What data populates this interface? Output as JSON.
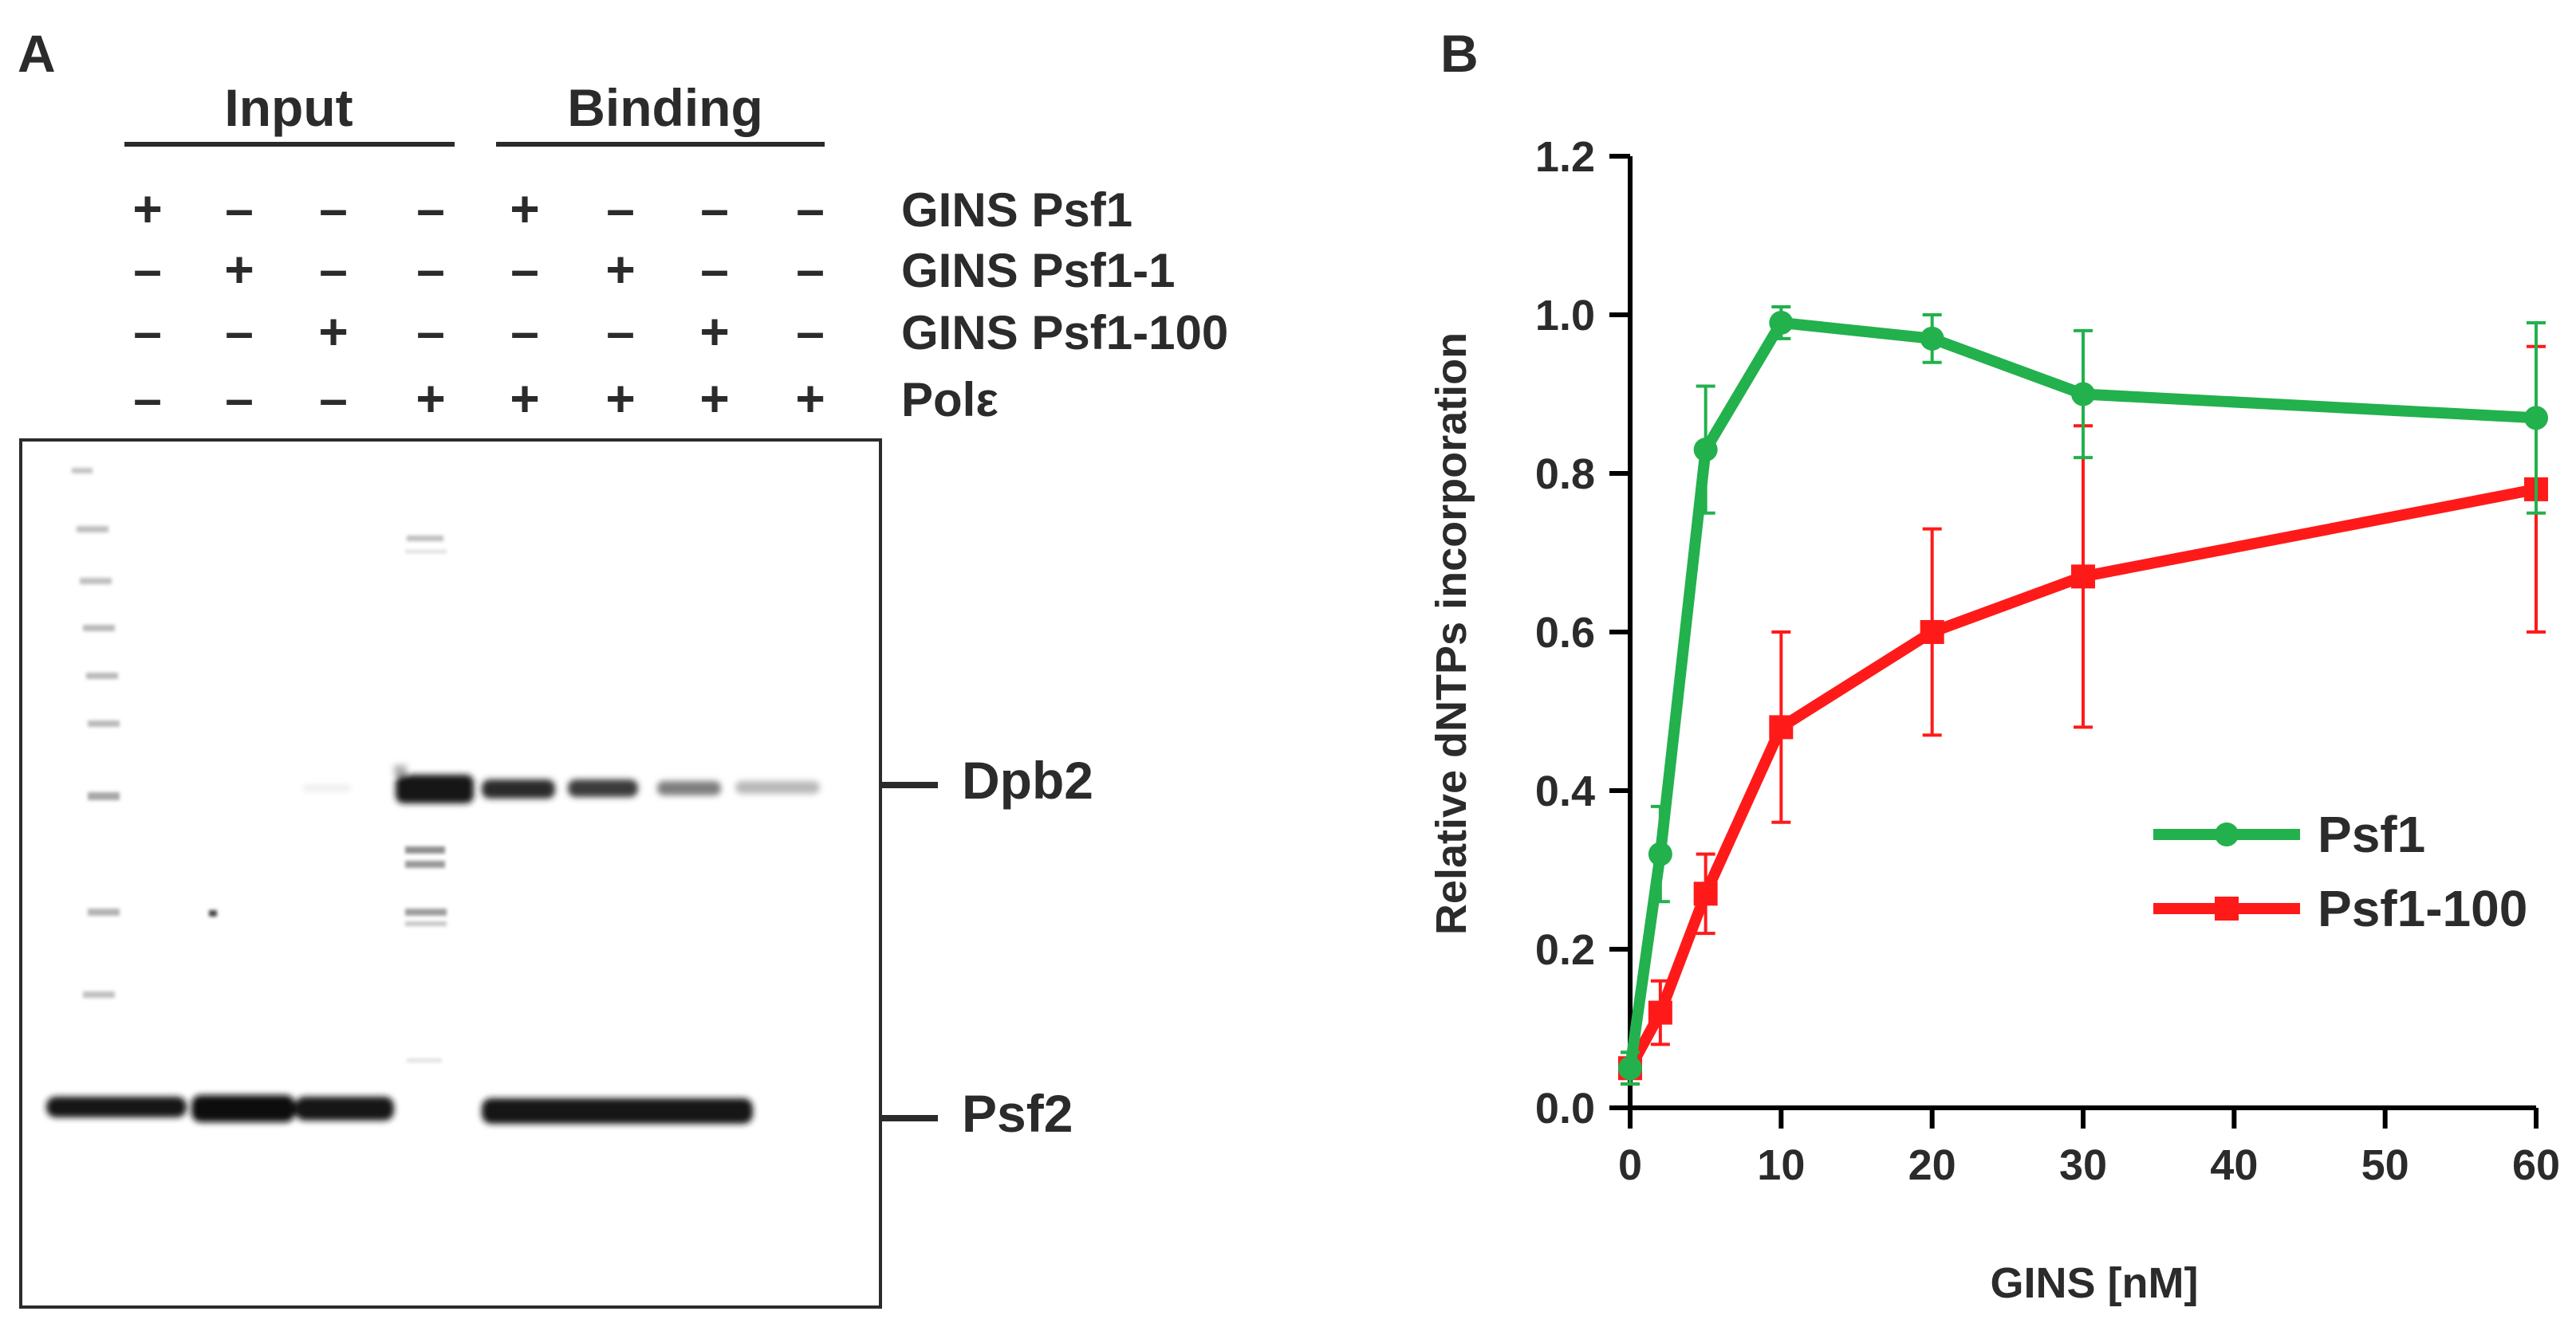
{
  "panel_a": {
    "label": "A",
    "group_headers": [
      "Input",
      "Binding"
    ],
    "rows": [
      {
        "label": "GINS Psf1",
        "signs": [
          "+",
          "–",
          "–",
          "–",
          "+",
          "–",
          "–",
          "–"
        ]
      },
      {
        "label": "GINS Psf1-1",
        "signs": [
          "–",
          "+",
          "–",
          "–",
          "–",
          "+",
          "–",
          "–"
        ]
      },
      {
        "label": "GINS Psf1-100",
        "signs": [
          "–",
          "–",
          "+",
          "–",
          "–",
          "–",
          "+",
          "–"
        ]
      },
      {
        "label": "Polε",
        "signs": [
          "–",
          "–",
          "–",
          "+",
          "+",
          "+",
          "+",
          "+"
        ]
      }
    ],
    "band_labels": {
      "dpb2": "Dpb2",
      "psf2": "Psf2"
    }
  },
  "panel_b": {
    "label": "B"
  },
  "chart_data": {
    "type": "line",
    "title": "",
    "xlabel": "GINS [nM]",
    "ylabel": "Relative dNTPs incorporation",
    "xlim": [
      0,
      60
    ],
    "ylim": [
      0,
      1.2
    ],
    "xticks": [
      0,
      10,
      20,
      30,
      40,
      50,
      60
    ],
    "yticks": [
      0.0,
      0.2,
      0.4,
      0.6,
      0.8,
      1.0,
      1.2
    ],
    "xtick_labels": [
      "0",
      "10",
      "20",
      "30",
      "40",
      "50",
      "60"
    ],
    "ytick_labels": [
      "0.0",
      "0.2",
      "0.4",
      "0.6",
      "0.8",
      "1.0",
      "1.2"
    ],
    "legend_position": "right",
    "series": [
      {
        "name": "Psf1",
        "color": "#22b14c",
        "marker": "circle",
        "x": [
          0,
          2,
          5,
          10,
          20,
          30,
          60
        ],
        "y": [
          0.05,
          0.32,
          0.83,
          0.99,
          0.97,
          0.9,
          0.87
        ],
        "err": [
          0.02,
          0.06,
          0.08,
          0.02,
          0.03,
          0.08,
          0.12
        ]
      },
      {
        "name": "Psf1-100",
        "color": "#ff1a1a",
        "marker": "square",
        "x": [
          0,
          2,
          5,
          10,
          20,
          30,
          60
        ],
        "y": [
          0.05,
          0.12,
          0.27,
          0.48,
          0.6,
          0.67,
          0.78
        ],
        "err": [
          0.02,
          0.04,
          0.05,
          0.12,
          0.13,
          0.19,
          0.18
        ]
      }
    ]
  }
}
